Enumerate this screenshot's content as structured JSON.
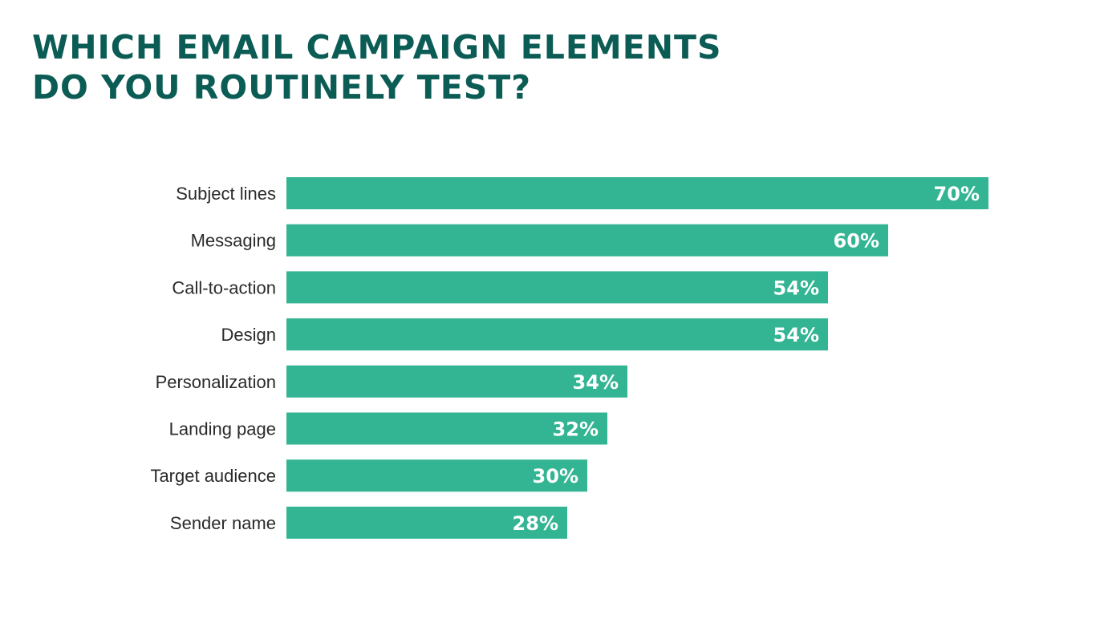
{
  "title": {
    "line1": "WHICH EMAIL CAMPAIGN ELEMENTS",
    "line2": "DO YOU ROUTINELY TEST?"
  },
  "colors": {
    "title": "#0b5c55",
    "bar": "#33b594",
    "value_label": "#ffffff",
    "category_label": "#2a2a2a",
    "background": "#ffffff"
  },
  "chart_data": {
    "type": "bar",
    "orientation": "horizontal",
    "categories": [
      "Subject lines",
      "Messaging",
      "Call-to-action",
      "Design",
      "Personalization",
      "Landing page",
      "Target audience",
      "Sender name"
    ],
    "values": [
      70,
      60,
      54,
      54,
      34,
      32,
      30,
      28
    ],
    "value_labels": [
      "70%",
      "60%",
      "54%",
      "54%",
      "34%",
      "32%",
      "30%",
      "28%"
    ],
    "unit": "%",
    "xlim": [
      0,
      70
    ],
    "grid": false,
    "legend": "none"
  }
}
